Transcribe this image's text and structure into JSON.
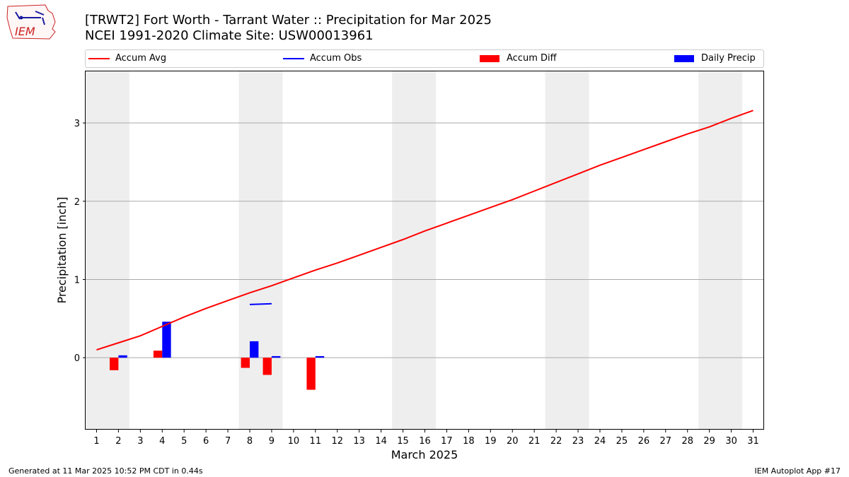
{
  "header": {
    "title_line1": "[TRWT2] Fort Worth - Tarrant Water :: Precipitation for Mar 2025",
    "title_line2": "NCEI 1991-2020 Climate Site: USW00013961",
    "logo_text": "IEM"
  },
  "legend": {
    "items": [
      {
        "label": "Accum Avg",
        "color": "#ff0000",
        "kind": "line"
      },
      {
        "label": "Accum Obs",
        "color": "#0000ff",
        "kind": "line"
      },
      {
        "label": "Accum Diff",
        "color": "#ff0000",
        "kind": "bar"
      },
      {
        "label": "Daily Precip",
        "color": "#0000ff",
        "kind": "bar"
      }
    ],
    "placement": "top, outside plot, spanning width"
  },
  "footer": {
    "left": "Generated at 11 Mar 2025 10:52 PM CDT in 0.44s",
    "right": "IEM Autoplot App #17"
  },
  "chart_data": {
    "type": "bar",
    "xlabel": "March 2025",
    "ylabel": "Precipitation [inch]",
    "xlim": [
      0.5,
      31.5
    ],
    "ylim": [
      -0.92,
      3.66
    ],
    "x_ticks": [
      "1",
      "2",
      "3",
      "4",
      "5",
      "6",
      "7",
      "8",
      "9",
      "10",
      "11",
      "12",
      "13",
      "14",
      "15",
      "16",
      "17",
      "18",
      "19",
      "20",
      "21",
      "22",
      "23",
      "24",
      "25",
      "26",
      "27",
      "28",
      "29",
      "30",
      "31"
    ],
    "y_ticks": [
      0,
      1,
      2,
      3
    ],
    "grid": "horizontal",
    "weekend_shading": [
      [
        1,
        2
      ],
      [
        8,
        9
      ],
      [
        15,
        16
      ],
      [
        22,
        23
      ],
      [
        29,
        30
      ]
    ],
    "series": [
      {
        "name": "Accum Avg",
        "kind": "line",
        "color": "#ff0000",
        "x": [
          1,
          2,
          3,
          4,
          5,
          6,
          7,
          8,
          9,
          10,
          11,
          12,
          13,
          14,
          15,
          16,
          17,
          18,
          19,
          20,
          21,
          22,
          23,
          24,
          25,
          26,
          27,
          28,
          29,
          30,
          31
        ],
        "values": [
          0.1,
          0.19,
          0.28,
          0.4,
          0.52,
          0.63,
          0.73,
          0.83,
          0.92,
          1.02,
          1.12,
          1.21,
          1.31,
          1.41,
          1.51,
          1.62,
          1.72,
          1.82,
          1.92,
          2.02,
          2.13,
          2.24,
          2.35,
          2.46,
          2.56,
          2.66,
          2.76,
          2.86,
          2.95,
          3.06,
          3.16
        ]
      },
      {
        "name": "Accum Obs",
        "kind": "line",
        "color": "#0000ff",
        "x": [
          8,
          9
        ],
        "values": [
          0.68,
          0.69
        ]
      },
      {
        "name": "Accum Diff",
        "kind": "bar",
        "color": "#ff0000",
        "x": [
          2,
          4,
          8,
          9,
          11
        ],
        "values": [
          -0.16,
          0.09,
          -0.13,
          -0.22,
          -0.41
        ]
      },
      {
        "name": "Daily Precip",
        "kind": "bar",
        "color": "#0000ff",
        "x": [
          2,
          4,
          8,
          9,
          11
        ],
        "values": [
          0.03,
          0.46,
          0.21,
          0.02,
          0.02
        ]
      }
    ]
  }
}
